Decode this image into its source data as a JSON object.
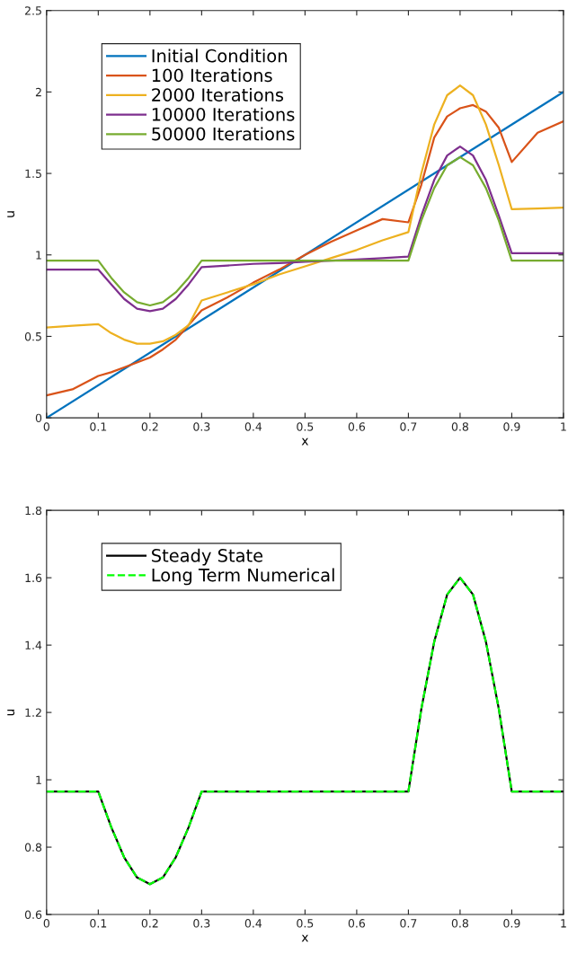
{
  "chart_data": [
    {
      "type": "line",
      "xlabel": "x",
      "ylabel": "u",
      "xlim": [
        0,
        1
      ],
      "ylim": [
        0,
        2.5
      ],
      "xticks": [
        0,
        0.1,
        0.2,
        0.3,
        0.4,
        0.5,
        0.6,
        0.7,
        0.8,
        0.9,
        1
      ],
      "yticks": [
        0,
        0.5,
        1,
        1.5,
        2,
        2.5
      ],
      "grid": false,
      "legend": "top left",
      "line_style": "solid",
      "x": [
        0,
        0.05,
        0.1,
        0.125,
        0.15,
        0.175,
        0.2,
        0.225,
        0.25,
        0.275,
        0.3,
        0.35,
        0.4,
        0.45,
        0.5,
        0.55,
        0.6,
        0.65,
        0.7,
        0.725,
        0.75,
        0.775,
        0.8,
        0.825,
        0.85,
        0.875,
        0.9,
        0.95,
        1
      ],
      "series": [
        {
          "name": "Initial Condition",
          "color": "#0072bd",
          "x": [
            0,
            1
          ],
          "values": [
            0,
            2
          ]
        },
        {
          "name": "100 Iterations",
          "color": "#d95319",
          "values": [
            0.138,
            0.175,
            0.257,
            0.28,
            0.31,
            0.34,
            0.37,
            0.42,
            0.48,
            0.57,
            0.66,
            0.74,
            0.83,
            0.91,
            1.0,
            1.08,
            1.15,
            1.22,
            1.2,
            1.43,
            1.72,
            1.85,
            1.9,
            1.92,
            1.88,
            1.78,
            1.57,
            1.75,
            1.82
          ]
        },
        {
          "name": "2000 Iterations",
          "color": "#edb120",
          "values": [
            0.555,
            0.565,
            0.575,
            0.52,
            0.48,
            0.455,
            0.455,
            0.47,
            0.51,
            0.57,
            0.72,
            0.77,
            0.82,
            0.88,
            0.93,
            0.98,
            1.03,
            1.09,
            1.14,
            1.5,
            1.8,
            1.98,
            2.04,
            1.98,
            1.8,
            1.55,
            1.28,
            1.285,
            1.29
          ]
        },
        {
          "name": "10000 Iterations",
          "color": "#7e2f8e",
          "values": [
            0.91,
            0.91,
            0.91,
            0.82,
            0.73,
            0.67,
            0.655,
            0.67,
            0.73,
            0.82,
            0.925,
            0.935,
            0.945,
            0.95,
            0.958,
            0.965,
            0.972,
            0.98,
            0.99,
            1.24,
            1.46,
            1.61,
            1.665,
            1.61,
            1.46,
            1.24,
            1.01,
            1.01,
            1.01
          ]
        },
        {
          "name": "50000 Iterations",
          "color": "#77ac30",
          "values": [
            0.965,
            0.965,
            0.965,
            0.86,
            0.77,
            0.71,
            0.69,
            0.71,
            0.77,
            0.86,
            0.965,
            0.965,
            0.965,
            0.965,
            0.965,
            0.965,
            0.965,
            0.965,
            0.965,
            1.21,
            1.41,
            1.55,
            1.6,
            1.55,
            1.41,
            1.21,
            0.965,
            0.965,
            0.965
          ]
        }
      ]
    },
    {
      "type": "line",
      "xlabel": "x",
      "ylabel": "u",
      "xlim": [
        0,
        1
      ],
      "ylim": [
        0.6,
        1.8
      ],
      "xticks": [
        0,
        0.1,
        0.2,
        0.3,
        0.4,
        0.5,
        0.6,
        0.7,
        0.8,
        0.9,
        1
      ],
      "yticks": [
        0.6,
        0.8,
        1,
        1.2,
        1.4,
        1.6,
        1.8
      ],
      "grid": false,
      "legend": "top left",
      "x": [
        0,
        0.05,
        0.1,
        0.125,
        0.15,
        0.175,
        0.2,
        0.225,
        0.25,
        0.275,
        0.3,
        0.35,
        0.4,
        0.45,
        0.5,
        0.55,
        0.6,
        0.65,
        0.7,
        0.725,
        0.75,
        0.775,
        0.8,
        0.825,
        0.85,
        0.875,
        0.9,
        0.95,
        1
      ],
      "series": [
        {
          "name": "Steady State",
          "color": "#000000",
          "line_style": "solid",
          "values": [
            0.965,
            0.965,
            0.965,
            0.86,
            0.77,
            0.71,
            0.69,
            0.71,
            0.77,
            0.86,
            0.965,
            0.965,
            0.965,
            0.965,
            0.965,
            0.965,
            0.965,
            0.965,
            0.965,
            1.21,
            1.41,
            1.55,
            1.6,
            1.55,
            1.41,
            1.21,
            0.965,
            0.965,
            0.965
          ]
        },
        {
          "name": "Long Term Numerical",
          "color": "#00ff00",
          "line_style": "dashed",
          "values": [
            0.965,
            0.965,
            0.965,
            0.86,
            0.77,
            0.71,
            0.69,
            0.71,
            0.77,
            0.86,
            0.965,
            0.965,
            0.965,
            0.965,
            0.965,
            0.965,
            0.965,
            0.965,
            0.965,
            1.21,
            1.41,
            1.55,
            1.6,
            1.55,
            1.41,
            1.21,
            0.965,
            0.965,
            0.965
          ]
        }
      ]
    }
  ]
}
